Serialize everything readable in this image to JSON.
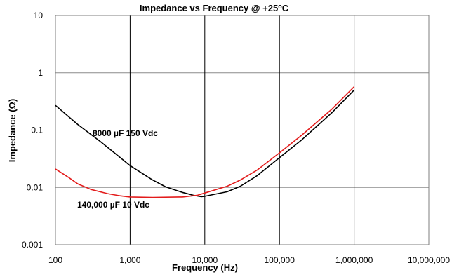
{
  "chart_data": {
    "type": "line",
    "title": "Impedance vs Frequency @ +25",
    "title_degree": "o",
    "title_unit": "C",
    "xlabel": "Frequency (Hz)",
    "ylabel": "Impedance (Ω)",
    "x_scale": "log",
    "y_scale": "log",
    "xlim": [
      100,
      10000000
    ],
    "ylim": [
      0.001,
      10
    ],
    "x_ticks": [
      {
        "value": 100,
        "label": "100"
      },
      {
        "value": 1000,
        "label": "1,000"
      },
      {
        "value": 10000,
        "label": "10,000"
      },
      {
        "value": 100000,
        "label": "100,000"
      },
      {
        "value": 1000000,
        "label": "1,000,000"
      },
      {
        "value": 10000000,
        "label": "10,000,000"
      }
    ],
    "y_ticks": [
      {
        "value": 10,
        "label": "10"
      },
      {
        "value": 1,
        "label": "1"
      },
      {
        "value": 0.1,
        "label": "0.1"
      },
      {
        "value": 0.01,
        "label": "0.01"
      },
      {
        "value": 0.001,
        "label": "0.001"
      }
    ],
    "grid": true,
    "series": [
      {
        "label": "8000 µF 150 Vdc",
        "color": "#000000",
        "points": [
          [
            100,
            0.27
          ],
          [
            200,
            0.125
          ],
          [
            400,
            0.063
          ],
          [
            700,
            0.035
          ],
          [
            1000,
            0.024
          ],
          [
            2000,
            0.0135
          ],
          [
            3000,
            0.0102
          ],
          [
            5000,
            0.0082
          ],
          [
            7000,
            0.0073
          ],
          [
            9000,
            0.0069
          ],
          [
            10000,
            0.007
          ],
          [
            20000,
            0.0084
          ],
          [
            30000,
            0.0105
          ],
          [
            50000,
            0.016
          ],
          [
            100000,
            0.033
          ],
          [
            200000,
            0.068
          ],
          [
            500000,
            0.2
          ],
          [
            1000000,
            0.5
          ]
        ]
      },
      {
        "label": "140,000 µF 10 Vdc",
        "color": "#e31b1b",
        "points": [
          [
            100,
            0.021
          ],
          [
            150,
            0.015
          ],
          [
            200,
            0.0115
          ],
          [
            300,
            0.0092
          ],
          [
            500,
            0.0078
          ],
          [
            700,
            0.0072
          ],
          [
            1000,
            0.0068
          ],
          [
            2000,
            0.0067
          ],
          [
            5000,
            0.0068
          ],
          [
            8000,
            0.0073
          ],
          [
            10000,
            0.008
          ],
          [
            20000,
            0.0105
          ],
          [
            30000,
            0.0135
          ],
          [
            50000,
            0.02
          ],
          [
            100000,
            0.04
          ],
          [
            200000,
            0.082
          ],
          [
            500000,
            0.23
          ],
          [
            1000000,
            0.57
          ]
        ]
      }
    ]
  }
}
